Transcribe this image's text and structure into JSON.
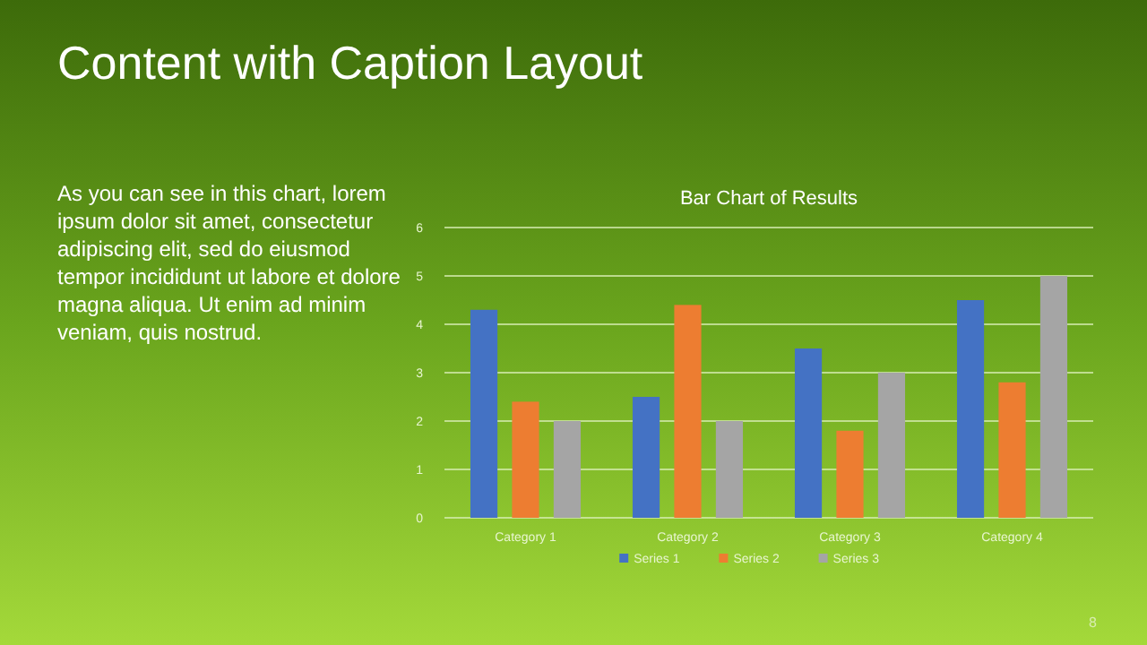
{
  "chart_data": {
    "type": "bar",
    "title": "Bar Chart of Results",
    "annotations": [
      "Content with Caption Layout",
      "As you can see in this chart, lorem ipsum dolor sit amet, consectetur adipiscing elit, sed do eiusmod tempor incididunt ut labore et dolore magna aliqua. Ut enim ad minim veniam, quis nostrud.",
      "8"
    ],
    "categories": [
      "Category 1",
      "Category 2",
      "Category 3",
      "Category 4"
    ],
    "series": [
      {
        "name": "Series 1",
        "color": "#4472c4",
        "values": [
          4.3,
          2.5,
          3.5,
          4.5
        ]
      },
      {
        "name": "Series 2",
        "color": "#ed7d31",
        "values": [
          2.4,
          4.4,
          1.8,
          2.8
        ]
      },
      {
        "name": "Series 3",
        "color": "#a5a5a5",
        "values": [
          2,
          2,
          3,
          5
        ]
      }
    ],
    "ylim": [
      0,
      6
    ],
    "yticks": [
      0,
      1,
      2,
      3,
      4,
      5,
      6
    ],
    "grid": "y",
    "legend": "bottom"
  }
}
